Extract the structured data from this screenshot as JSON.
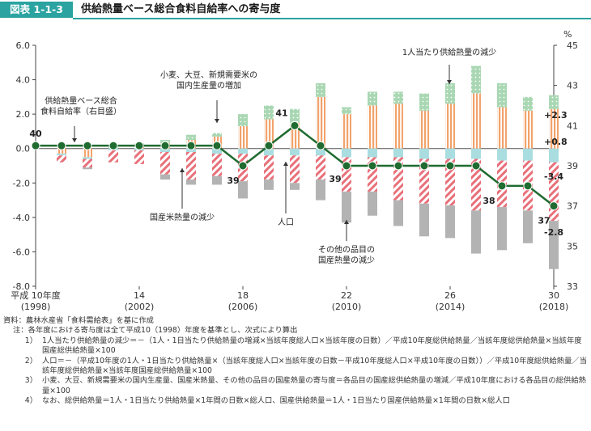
{
  "header": {
    "figure_no": "図表 1-1-3",
    "title": "供給熱量ベース総合食料自給率への寄与度"
  },
  "chart_data": {
    "type": "bar",
    "title": "供給熱量ベース総合食料自給率への寄与度",
    "left_axis": {
      "ylim": [
        -8,
        6
      ],
      "ticks": [
        "6.0",
        "4.0",
        "2.0",
        "0.0",
        "-2.0",
        "-4.0",
        "-6.0",
        "-8.0"
      ]
    },
    "right_axis": {
      "unit": "%",
      "ylim": [
        33,
        45
      ],
      "ticks": [
        "45",
        "43",
        "41",
        "39",
        "37",
        "35",
        "33"
      ]
    },
    "x_tick_labels": [
      {
        "index": 0,
        "line1": "平成 10年度",
        "line2": "(1998)"
      },
      {
        "index": 4,
        "line1": "14",
        "line2": "(2002)"
      },
      {
        "index": 8,
        "line1": "18",
        "line2": "(2006)"
      },
      {
        "index": 12,
        "line1": "22",
        "line2": "(2010)"
      },
      {
        "index": 16,
        "line1": "26",
        "line2": "(2014)"
      },
      {
        "index": 20,
        "line1": "30",
        "line2": "(2018)"
      }
    ],
    "years": [
      1998,
      1999,
      2000,
      2001,
      2002,
      2003,
      2004,
      2005,
      2006,
      2007,
      2008,
      2009,
      2010,
      2011,
      2012,
      2013,
      2014,
      2015,
      2016,
      2017,
      2018
    ],
    "series": [
      {
        "name": "1人当たり供給熱量の減少",
        "color": "#f2a36b",
        "values": [
          0,
          -0.3,
          -0.5,
          0.0,
          0.1,
          0.3,
          0.5,
          0.7,
          1.3,
          1.7,
          1.5,
          3.0,
          2.0,
          2.5,
          2.6,
          2.2,
          2.6,
          3.2,
          2.4,
          2.2,
          2.3
        ]
      },
      {
        "name": "小麦、大豆、新規需要米の国内生産量の増加",
        "color": "#a9d7b3",
        "values": [
          0,
          0,
          0,
          0.1,
          0.2,
          0.2,
          0.3,
          0.2,
          0.7,
          0.8,
          0.8,
          0.8,
          0.4,
          0.8,
          0.7,
          1.0,
          1.2,
          1.6,
          1.4,
          0.8,
          0.8
        ]
      },
      {
        "name": "人口",
        "color": "#a9dde0",
        "values": [
          0,
          -0.1,
          -0.1,
          -0.1,
          -0.1,
          -0.2,
          -0.2,
          -0.3,
          -0.3,
          -0.4,
          -0.4,
          -0.4,
          -0.5,
          -0.5,
          -0.5,
          -0.6,
          -0.6,
          -0.6,
          -0.7,
          -0.7,
          -0.8
        ]
      },
      {
        "name": "国産米熱量の減少",
        "color": "#e8707a",
        "values": [
          0,
          -0.4,
          -0.5,
          -0.7,
          -0.8,
          -1.3,
          -1.6,
          -1.3,
          -1.6,
          -1.4,
          -1.6,
          -1.4,
          -2.0,
          -2.0,
          -2.5,
          -2.6,
          -2.7,
          -3.0,
          -2.7,
          -2.9,
          -3.4
        ]
      },
      {
        "name": "その他の品目の国産熱量の減少",
        "color": "#b3b3b3",
        "values": [
          0,
          0,
          -0.1,
          0,
          0,
          -0.3,
          -0.3,
          -0.5,
          -1.0,
          -0.6,
          -0.4,
          -1.2,
          -1.8,
          -1.4,
          -1.5,
          -1.9,
          -1.9,
          -2.5,
          -2.5,
          -1.9,
          -2.8
        ]
      },
      {
        "name": "供給熱量ベース総合食料自給率（右目盛）",
        "type": "line",
        "color": "#1f6b30",
        "values": [
          40,
          40,
          40,
          40,
          40,
          40,
          40,
          40,
          39,
          40,
          41,
          40,
          39,
          39,
          39,
          39,
          39,
          39,
          38,
          38,
          37
        ]
      }
    ],
    "point_labels": [
      {
        "index": 0,
        "text": "40"
      },
      {
        "index": 8,
        "text": "39"
      },
      {
        "index": 10,
        "text": "41"
      },
      {
        "index": 12,
        "text": "39"
      },
      {
        "index": 18,
        "text": "38"
      },
      {
        "index": 20,
        "text": "37"
      }
    ],
    "value_labels": [
      "+2.3",
      "+0.8",
      "-3.4",
      "-2.8"
    ],
    "annotations": [
      {
        "key": "self_rate",
        "lines": [
          "供給熱量ベース総合",
          "食料自給率（右目盛）"
        ]
      },
      {
        "key": "wheat",
        "lines": [
          "小麦、大豆、新規需要米の",
          "国内生産量の増加"
        ]
      },
      {
        "key": "percap",
        "lines": [
          "1人当たり供給熱量の減少"
        ]
      },
      {
        "key": "rice",
        "lines": [
          "国産米熱量の減少"
        ]
      },
      {
        "key": "pop",
        "lines": [
          "人口"
        ]
      },
      {
        "key": "other",
        "lines": [
          "その他の品目の",
          "国産熱量の減少"
        ]
      }
    ]
  },
  "notes": {
    "source": "資料：農林水産省「食料需給表」を基に作成",
    "note_head": "注：各年度における寄与度は全て平成10（1998）年度を基準とし、次式により算出",
    "items": [
      {
        "num": "1）",
        "text": "1人当たり供給熱量の減少＝－（1人・1日当たり供給熱量の増減×当該年度総人口×当該年度の日数）／平成10年度総供給熱量／当該年度総供給熱量×当該年度国産総供給熱量×100"
      },
      {
        "num": "2）",
        "text": "人口＝－（平成10年度の1人・1日当たり供給熱量×（当該年度総人口×当該年度の日数－平成10年度総人口×平成10年度の日数））／平成10年度総供給熱量／当該年度総供給熱量×当該年度国産総供給熱量×100"
      },
      {
        "num": "3）",
        "text": "小麦、大豆、新規需要米の国内生産量、国産米熱量、その他の品目の国産熱量の寄与度＝各品目の国産総供給熱量の増減／平成10年度における各品目の総供給熱量×100"
      },
      {
        "num": "4）",
        "text": "なお、総供給熱量＝1人・1日当たり供給熱量×1年間の日数×総人口、国産供給熱量＝1人・1日当たり国産供給熱量×1年間の日数×総人口"
      }
    ]
  }
}
